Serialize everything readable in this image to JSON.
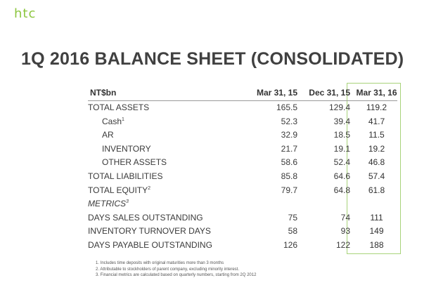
{
  "brand": {
    "logo_text": "htc",
    "accent_color": "#8cc63f"
  },
  "page": {
    "title": "1Q 2016 BALANCE SHEET (CONSOLIDATED)"
  },
  "table": {
    "headers": [
      "NT$bn",
      "Mar 31, 15",
      "Dec 31, 15",
      "Mar 31, 16"
    ],
    "rows": [
      {
        "label": "TOTAL ASSETS",
        "values": [
          "165.5",
          "129.4",
          "119.2"
        ]
      },
      {
        "label": "Cash",
        "sup": "1",
        "values": [
          "52.3",
          "39.4",
          "41.7"
        ]
      },
      {
        "label": "AR",
        "values": [
          "32.9",
          "18.5",
          "11.5"
        ]
      },
      {
        "label": "INVENTORY",
        "values": [
          "21.7",
          "19.1",
          "19.2"
        ]
      },
      {
        "label": "OTHER ASSETS",
        "values": [
          "58.6",
          "52.4",
          "46.8"
        ]
      },
      {
        "label": "TOTAL LIABILITIES",
        "values": [
          "85.8",
          "64.6",
          "57.4"
        ]
      },
      {
        "label": "TOTAL EQUITY",
        "sup": "2",
        "values": [
          "79.7",
          "64.8",
          "61.8"
        ]
      },
      {
        "label": "METRICS",
        "sup": "3"
      },
      {
        "label": "DAYS SALES OUTSTANDING",
        "values": [
          "75",
          "74",
          "111"
        ]
      },
      {
        "label": "INVENTORY TURNOVER DAYS",
        "values": [
          "58",
          "93",
          "149"
        ]
      },
      {
        "label": "DAYS PAYABLE OUTSTANDING",
        "values": [
          "126",
          "122",
          "188"
        ]
      }
    ],
    "highlight_color": "#a8d37a"
  },
  "footnotes": [
    "1. Includes time deposits with original maturities more than 3 months",
    "2. Attributable to stockholders of parent company, excluding minority interest.",
    "3. Financial metrics are calculated based on quarterly numbers, starting from 2Q 2012"
  ]
}
